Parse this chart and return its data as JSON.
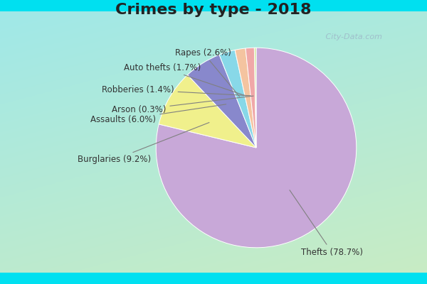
{
  "title": "Crimes by type - 2018",
  "slices": [
    {
      "label": "Thefts",
      "pct": 78.7,
      "color": "#C8A8D8"
    },
    {
      "label": "Burglaries",
      "pct": 9.2,
      "color": "#F0F08C"
    },
    {
      "label": "Assaults",
      "pct": 6.0,
      "color": "#8888CC"
    },
    {
      "label": "Rapes",
      "pct": 2.6,
      "color": "#88D8E8"
    },
    {
      "label": "Auto thefts",
      "pct": 1.7,
      "color": "#F4C4A0"
    },
    {
      "label": "Robberies",
      "pct": 1.4,
      "color": "#F0A8A8"
    },
    {
      "label": "Arson",
      "pct": 0.3,
      "color": "#D4E8A0"
    }
  ],
  "border_color": "#00E0F0",
  "title_color": "#222222",
  "title_fontsize": 16,
  "watermark": "   City-Data.com",
  "bg_colors": [
    "#A0E8E8",
    "#C8E8C0"
  ],
  "label_color": "#333333",
  "label_fontsize": 8.5
}
